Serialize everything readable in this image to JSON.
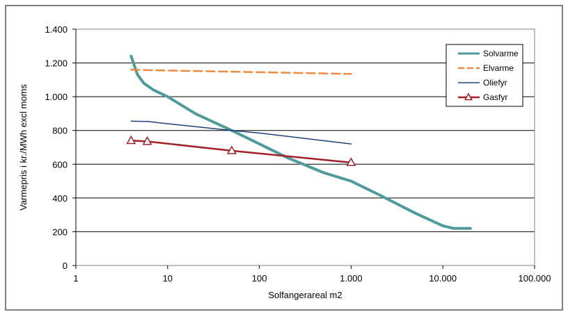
{
  "chart_data": {
    "type": "line",
    "xlabel": "Solfangerareal m2",
    "ylabel": "Varmepris i kr./MWh excl moms",
    "x_scale": "log",
    "xlim": [
      1,
      100000
    ],
    "ylim": [
      0,
      1400
    ],
    "x_ticks": [
      1,
      10,
      100,
      1000,
      10000,
      100000
    ],
    "x_tick_labels": [
      "1",
      "10",
      "100",
      "1.000",
      "10.000",
      "100.000"
    ],
    "y_ticks": [
      0,
      200,
      400,
      600,
      800,
      1000,
      1200,
      1400
    ],
    "y_tick_labels": [
      "0",
      "200",
      "400",
      "600",
      "800",
      "1.000",
      "1.200",
      "1.400"
    ],
    "grid": "horizontal",
    "legend_position": "top-right",
    "series": [
      {
        "name": "Solvarme",
        "color": "#4f9a9a",
        "style": "solid-thick",
        "x": [
          4,
          4.3,
          4.7,
          5.5,
          7,
          10,
          20,
          50,
          100,
          200,
          500,
          1000,
          2000,
          5000,
          10000,
          13000,
          15000,
          20000
        ],
        "y": [
          1240,
          1190,
          1130,
          1080,
          1040,
          1000,
          900,
          800,
          720,
          640,
          550,
          500,
          420,
          310,
          235,
          220,
          220,
          220
        ]
      },
      {
        "name": "Elvarme",
        "color": "#f0883e",
        "style": "dashed",
        "x": [
          4,
          10,
          100,
          1000
        ],
        "y": [
          1160,
          1155,
          1145,
          1135
        ]
      },
      {
        "name": "Oliefyr",
        "color": "#1f3f7a",
        "style": "solid-thin",
        "x": [
          4,
          6,
          10,
          50,
          100,
          1000
        ],
        "y": [
          855,
          853,
          840,
          800,
          785,
          720
        ]
      },
      {
        "name": "Gasfyr",
        "color": "#a31f2a",
        "style": "solid-triangle",
        "x": [
          4,
          6,
          50,
          1000
        ],
        "y": [
          740,
          735,
          680,
          610
        ]
      }
    ]
  }
}
